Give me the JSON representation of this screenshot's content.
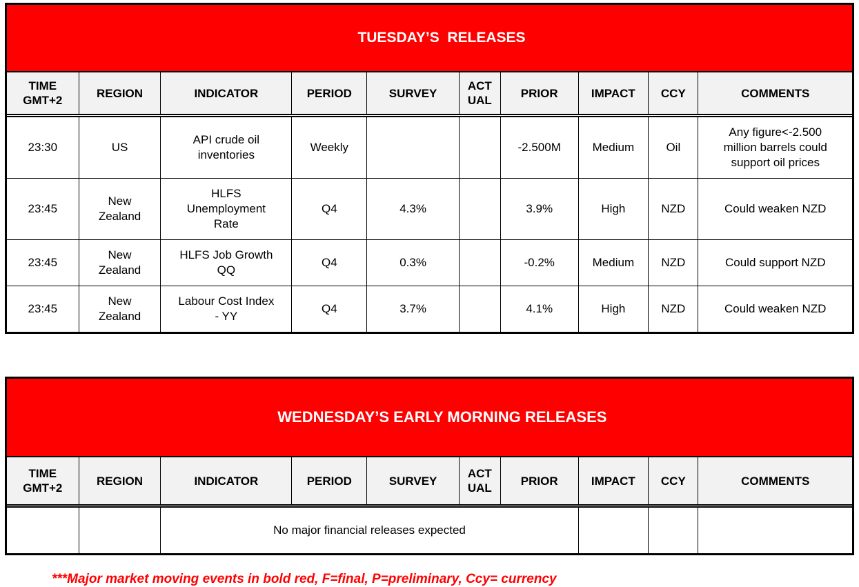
{
  "colors": {
    "page_bg": "#ffffff",
    "banner_bg": "#ff0000",
    "banner_text": "#ffffff",
    "header_bg": "#f2f2f2",
    "border": "#000000",
    "cell_text": "#000000",
    "footnote_text": "#ff0000"
  },
  "tables": [
    {
      "title": "TUESDAY’S  RELEASES",
      "headers": [
        "TIME\nGMT+2",
        "REGION",
        "INDICATOR",
        "PERIOD",
        "SURVEY",
        "ACT\nUAL",
        "PRIOR",
        "IMPACT",
        "CCY",
        "COMMENTS"
      ],
      "rows": [
        {
          "cells": [
            "23:30",
            "US",
            "API crude oil\ninventories",
            "Weekly",
            "",
            "",
            "-2.500M",
            "Medium",
            "Oil",
            "Any figure<-2.500\nmillion barrels could\nsupport oil prices"
          ]
        },
        {
          "cells": [
            "23:45",
            "New\nZealand",
            "HLFS\nUnemployment\nRate",
            "Q4",
            "4.3%",
            "",
            "3.9%",
            "High",
            "NZD",
            "Could weaken NZD"
          ]
        },
        {
          "cells": [
            "23:45",
            "New\nZealand",
            "HLFS Job Growth\nQQ",
            "Q4",
            "0.3%",
            "",
            "-0.2%",
            "Medium",
            "NZD",
            "Could support NZD"
          ]
        },
        {
          "cells": [
            "23:45",
            "New\nZealand",
            "Labour Cost Index\n- YY",
            "Q4",
            "3.7%",
            "",
            "4.1%",
            "High",
            "NZD",
            "Could weaken NZD"
          ]
        }
      ]
    },
    {
      "title": "WEDNESDAY’S EARLY MORNING RELEASES",
      "headers": [
        "TIME\nGMT+2",
        "REGION",
        "INDICATOR",
        "PERIOD",
        "SURVEY",
        "ACT\nUAL",
        "PRIOR",
        "IMPACT",
        "CCY",
        "COMMENTS"
      ],
      "rows": [
        {
          "cells": [
            "",
            "",
            {
              "text": "No major financial releases expected",
              "colspan": 5
            },
            "",
            "",
            ""
          ]
        }
      ]
    }
  ],
  "footnote": "***Major market moving events in bold red, F=final, P=preliminary, Ccy= currency"
}
